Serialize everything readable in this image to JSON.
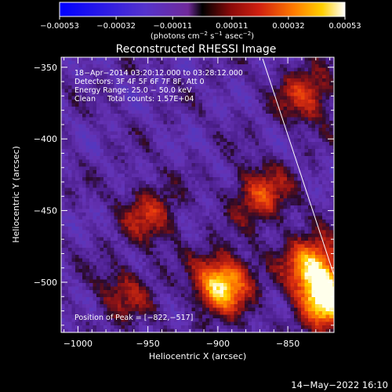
{
  "chart_data": {
    "type": "heatmap",
    "title": "Reconstructed RHESSI Image",
    "xlabel": "Heliocentric X (arcsec)",
    "ylabel": "Heliocentric Y (arcsec)",
    "xlim": [
      -1012,
      -817
    ],
    "ylim": [
      -535,
      -343
    ],
    "xticks": [
      -1000,
      -950,
      -900,
      -850
    ],
    "xtick_labels": [
      "−1000",
      "−950",
      "−900",
      "−850"
    ],
    "yticks": [
      -350,
      -400,
      -450,
      -500
    ],
    "ytick_labels": [
      "−350",
      "−400",
      "−450",
      "−500"
    ],
    "colorbar": {
      "min": -0.00053,
      "max": 0.00053,
      "ticks": [
        -0.00053,
        -0.00032,
        -0.00011,
        0.00011,
        0.00032,
        0.00053
      ],
      "tick_labels": [
        "−0.00053",
        "−0.00032",
        "−0.00011",
        "0.00011",
        "0.00032",
        "0.00053"
      ],
      "unit_parts": [
        "(photons cm",
        "−2",
        " s",
        "−1",
        " asec",
        "−2",
        ")"
      ]
    },
    "annotations": [
      "18−Apr−2014 03:20:12.000 to 03:28:12.000",
      "Detectors: 3F 4F 5F 6F 7F 8F, Att 0",
      "Energy Range: 25.0 − 50.0 keV",
      "Clean     Total counts: 1.57E+04"
    ],
    "peak_label": "Position of Peak = [−822,−517]",
    "peak": [
      -822,
      -517
    ],
    "sources": [
      {
        "x": -823,
        "y": -512,
        "level": 1.0
      },
      {
        "x": -833,
        "y": -487,
        "level": 0.85
      },
      {
        "x": -898,
        "y": -500,
        "level": 0.95
      },
      {
        "x": -870,
        "y": -438,
        "level": 0.55
      },
      {
        "x": -838,
        "y": -368,
        "level": 0.5
      },
      {
        "x": -950,
        "y": -452,
        "level": 0.45
      },
      {
        "x": -968,
        "y": -507,
        "level": 0.35
      }
    ],
    "limb_line": {
      "start": [
        -868,
        -344
      ],
      "end": [
        -817,
        -495
      ]
    }
  },
  "footer_timestamp": "14−May−2022 16:10",
  "colors": {
    "background": "#000000",
    "palette": [
      "#0000ff",
      "#4a3cd0",
      "#7a2fc0",
      "#3a1020",
      "#b01818",
      "#ff5a00",
      "#ffd200",
      "#ffffff"
    ]
  }
}
